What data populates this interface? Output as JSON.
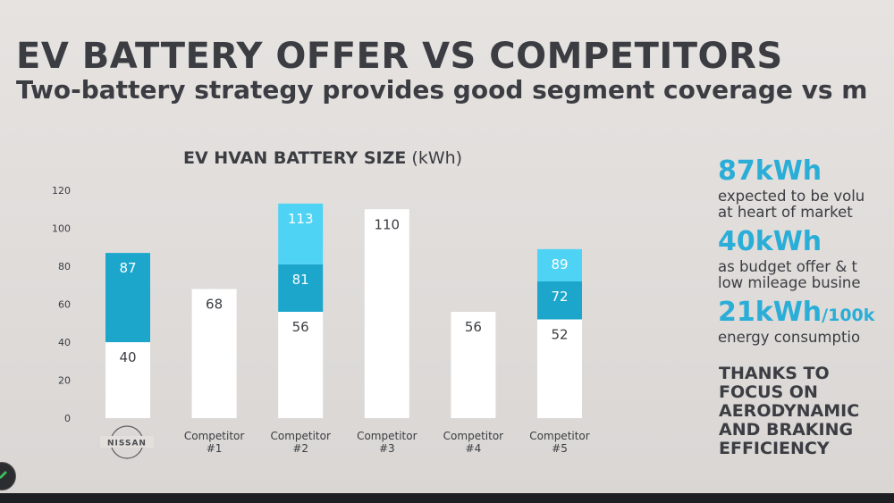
{
  "slide": {
    "title": "EV BATTERY OFFER VS COMPETITORS",
    "subtitle": "Two-battery strategy provides good segment coverage vs m"
  },
  "chart_data": {
    "type": "bar",
    "stacked": true,
    "title_bold": "EV HVAN BATTERY SIZE",
    "title_unit": "(kWh)",
    "ylim": [
      0,
      120
    ],
    "yticks": [
      0,
      20,
      40,
      60,
      80,
      100,
      120
    ],
    "categories": [
      {
        "label": "NISSAN",
        "is_logo": true,
        "segments": [
          40,
          87
        ]
      },
      {
        "label_lines": [
          "Competitor",
          "#1"
        ],
        "segments": [
          68
        ]
      },
      {
        "label_lines": [
          "Competitor",
          "#2"
        ],
        "segments": [
          56,
          81,
          113
        ]
      },
      {
        "label_lines": [
          "Competitor",
          "#3"
        ],
        "segments": [
          110
        ]
      },
      {
        "label_lines": [
          "Competitor",
          "#4"
        ],
        "segments": [
          56
        ]
      },
      {
        "label_lines": [
          "Competitor",
          "#5"
        ],
        "segments": [
          52,
          72,
          89
        ]
      }
    ],
    "colors": {
      "base": "#ffffff",
      "mid": "#1ca6cb",
      "top": "#4fd3f4",
      "nissan_top": "#1ca6cb",
      "text_dark": "#3b3d42",
      "text_light": "#ffffff"
    }
  },
  "facts": [
    {
      "value": "87kWh",
      "unit": "",
      "desc": "expected to be volu\nat heart of market"
    },
    {
      "value": "40kWh",
      "unit": "",
      "desc": "as budget offer & t\nlow mileage busine"
    },
    {
      "value": "21kWh",
      "unit": "/100k",
      "desc": "energy consumptio"
    }
  ],
  "thanks": "THANKS TO\nFOCUS ON\nAERODYNAMIC\nAND BRAKING\nEFFICIENCY"
}
